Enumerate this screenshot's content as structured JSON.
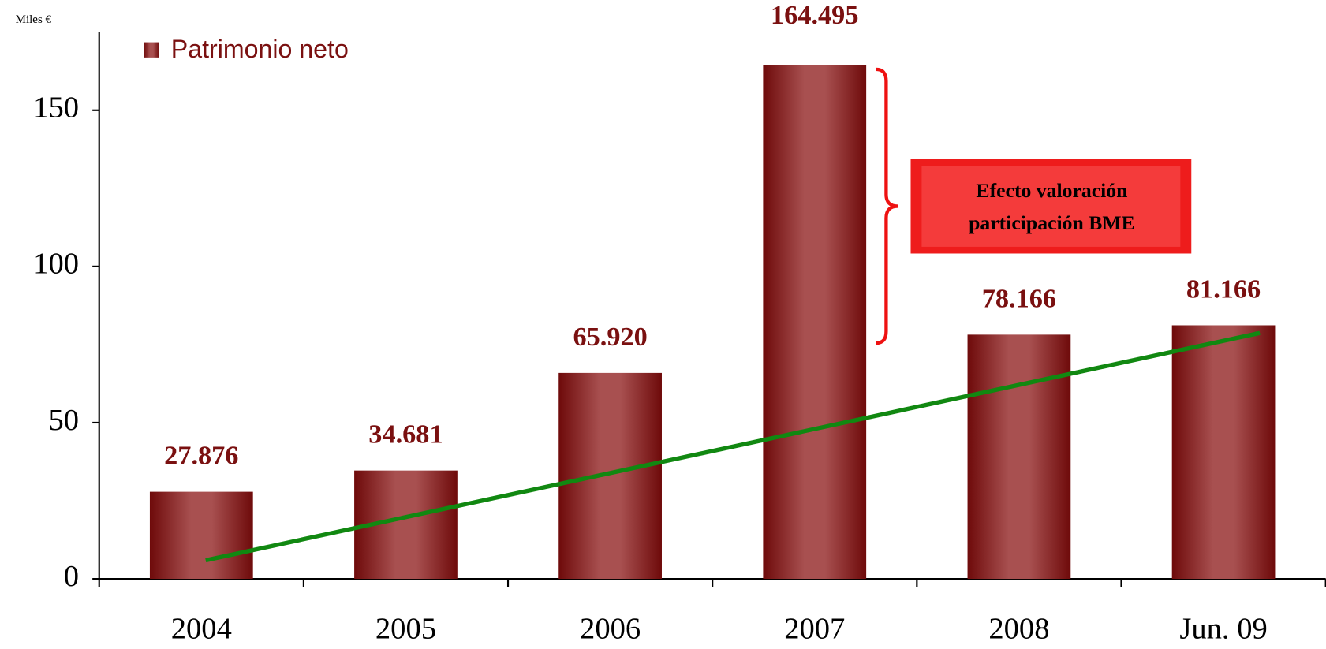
{
  "chart_data": {
    "type": "bar",
    "unit_label": "Miles €",
    "categories": [
      "2004",
      "2005",
      "2006",
      "2007",
      "2008",
      "Jun. 09"
    ],
    "series": [
      {
        "name": "Patrimonio neto",
        "color": "#8b1a1a",
        "values": [
          27.876,
          34.681,
          65.92,
          164.495,
          78.166,
          81.166
        ],
        "value_labels": [
          "27.876",
          "34.681",
          "65.920",
          "164.495",
          "78.166",
          "81.166"
        ]
      }
    ],
    "ylim": [
      0,
      175
    ],
    "yticks": [
      0,
      50,
      100,
      150
    ],
    "annotation": [
      "Efecto valoración",
      "participación BME"
    ],
    "legend": "top-left"
  }
}
